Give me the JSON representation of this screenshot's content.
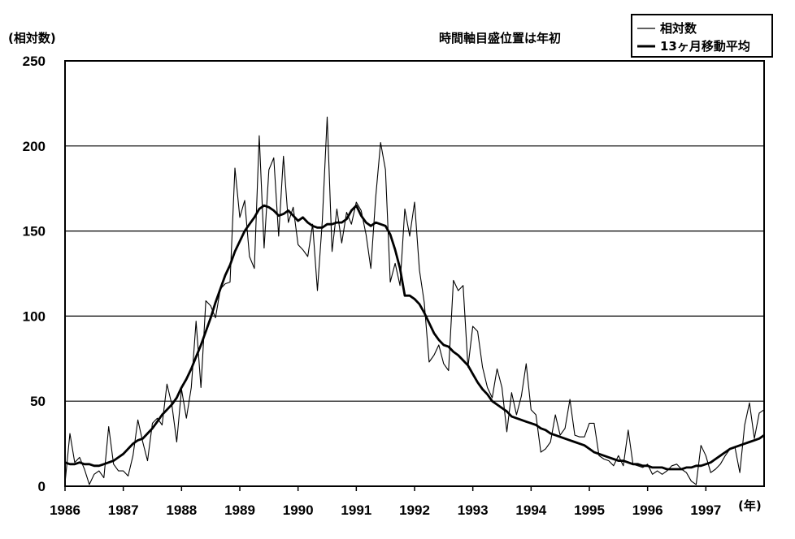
{
  "chart_data": {
    "type": "line",
    "title": "",
    "note": "時間軸目盛位置は年初",
    "ylabel": "(相対数)",
    "xlabel": "(年)",
    "ylim": [
      0,
      250
    ],
    "yticks": [
      0,
      50,
      100,
      150,
      200,
      250
    ],
    "xlim": [
      1986,
      1998
    ],
    "xticks": [
      "1986",
      "1987",
      "1988",
      "1989",
      "1990",
      "1991",
      "1992",
      "1993",
      "1994",
      "1995",
      "1996",
      "1997"
    ],
    "grid": "horizontal",
    "legend_position": "top-right",
    "series": [
      {
        "name": "相対数",
        "style": "thin",
        "color": "#000000",
        "x_start": 1986.0,
        "x_step": 0.08333,
        "values": [
          2,
          31,
          14,
          17,
          10,
          1,
          7,
          9,
          5,
          35,
          13,
          9,
          9,
          6,
          18,
          39,
          26,
          15,
          37,
          40,
          36,
          60,
          48,
          26,
          57,
          40,
          58,
          97,
          58,
          109,
          106,
          99,
          116,
          119,
          120,
          187,
          158,
          168,
          135,
          128,
          206,
          140,
          186,
          193,
          147,
          194,
          155,
          164,
          142,
          139,
          135,
          154,
          115,
          156,
          217,
          138,
          163,
          143,
          161,
          154,
          167,
          162,
          148,
          128,
          170,
          202,
          186,
          120,
          131,
          118,
          163,
          147,
          167,
          127,
          108,
          73,
          77,
          83,
          72,
          68,
          121,
          115,
          118,
          70,
          94,
          91,
          70,
          58,
          52,
          69,
          58,
          32,
          55,
          42,
          53,
          72,
          45,
          42,
          20,
          22,
          26,
          42,
          30,
          34,
          51,
          30,
          29,
          29,
          37,
          37,
          18,
          16,
          15,
          12,
          18,
          12,
          33,
          13,
          12,
          11,
          13,
          7,
          9,
          7,
          9,
          12,
          13,
          10,
          8,
          3,
          1,
          24,
          18,
          8,
          10,
          13,
          18,
          22,
          23,
          8,
          36,
          49,
          28,
          43,
          45
        ]
      },
      {
        "name": "13ヶ月移動平均",
        "style": "thick",
        "color": "#000000",
        "x_start": 1986.0,
        "x_step": 0.08333,
        "values": [
          14,
          13,
          13,
          14,
          13,
          13,
          12,
          12,
          13,
          14,
          15,
          17,
          19,
          22,
          25,
          27,
          28,
          31,
          34,
          38,
          42,
          45,
          48,
          52,
          58,
          63,
          69,
          76,
          83,
          91,
          99,
          108,
          116,
          124,
          130,
          138,
          144,
          150,
          154,
          158,
          163,
          165,
          164,
          162,
          159,
          160,
          162,
          159,
          156,
          158,
          155,
          153,
          152,
          152,
          154,
          154,
          155,
          155,
          157,
          162,
          165,
          159,
          155,
          153,
          155,
          154,
          153,
          148,
          139,
          128,
          112,
          112,
          110,
          107,
          102,
          96,
          90,
          86,
          83,
          82,
          79,
          77,
          74,
          71,
          66,
          61,
          57,
          54,
          50,
          48,
          46,
          44,
          41,
          40,
          39,
          38,
          37,
          36,
          34,
          33,
          31,
          30,
          29,
          28,
          27,
          26,
          25,
          24,
          22,
          20,
          19,
          18,
          17,
          16,
          15,
          15,
          14,
          13,
          13,
          12,
          12,
          11,
          11,
          11,
          10,
          10,
          10,
          10,
          11,
          11,
          12,
          12,
          13,
          14,
          16,
          18,
          20,
          22,
          23,
          24,
          25,
          26,
          27,
          28,
          30
        ]
      }
    ]
  }
}
